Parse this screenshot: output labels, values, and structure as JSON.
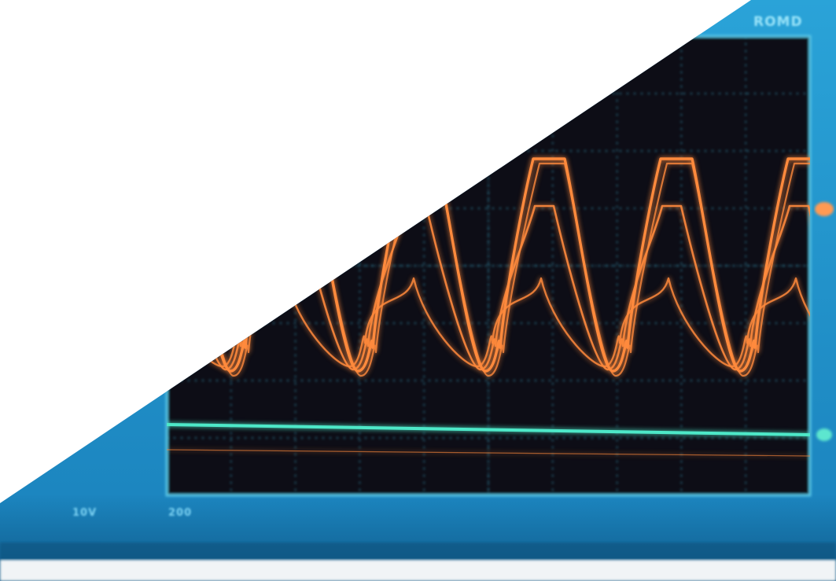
{
  "image": {
    "subject": "oscilloscope-screen",
    "colors": {
      "bezel": "#1f8fc8",
      "bezel_dark": "#136aa0",
      "screen": "#0b0f15",
      "grid": "#3fb8d8",
      "trace_orange": "#ff8a3c",
      "trace_cyan": "#4ee8c8",
      "background": "#ffffff"
    }
  },
  "bezel": {
    "mode": "ROMD",
    "ch1": "10V",
    "timebase": "200",
    "trigger": "",
    "ch2": "",
    "ch3": ""
  }
}
